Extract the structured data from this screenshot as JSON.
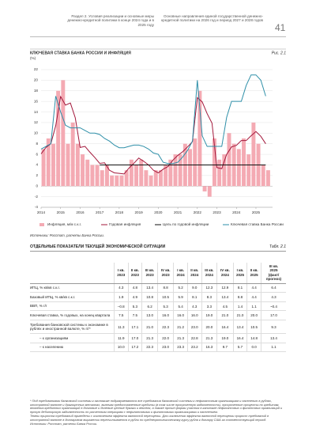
{
  "header": {
    "section": "Раздел 2. Условия реализации и основные меры денежно-кредитной политики в конце 2024 года и в 2025 году",
    "document": "Основные направления единой государственной денежно-кредитной политики на 2026 год и период 2027 и 2028 годов",
    "page": "41"
  },
  "chart_data": {
    "type": "combo",
    "title": "КЛЮЧЕВАЯ СТАВКА БАНКА РОССИИ И ИНФЛЯЦИЯ",
    "label": "Рис. 2.1",
    "ylabel": "(%)",
    "source": "Источники: Росстат, расчеты Банка России.",
    "x": [
      2014,
      2014.25,
      2014.5,
      2014.75,
      2015,
      2015.25,
      2015.5,
      2015.75,
      2016,
      2016.25,
      2016.5,
      2016.75,
      2017,
      2017.25,
      2017.5,
      2017.75,
      2018,
      2018.25,
      2018.5,
      2018.75,
      2019,
      2019.25,
      2019.5,
      2019.75,
      2020,
      2020.25,
      2020.5,
      2020.75,
      2021,
      2021.25,
      2021.5,
      2021.75,
      2022,
      2022.25,
      2022.5,
      2022.75,
      2023,
      2023.25,
      2023.5,
      2023.75,
      2024,
      2024.25,
      2024.5,
      2024.75,
      2025,
      2025.25,
      2025.5
    ],
    "xlim": [
      2014,
      2025.85
    ],
    "xticks": [
      2014,
      2015,
      2016,
      2017,
      2018,
      2019,
      2020,
      2021,
      2022,
      2023,
      2024,
      2025
    ],
    "ylim": [
      -4,
      22
    ],
    "yticks": [
      -4,
      -2,
      0,
      2,
      4,
      6,
      8,
      10,
      12,
      14,
      16,
      18,
      20,
      22
    ],
    "grid": true,
    "series": [
      {
        "name": "Инфляция, м/м с.к.г.",
        "kind": "bar",
        "color": "#f4aab3",
        "values": [
          7,
          9,
          8,
          18,
          20,
          8,
          12,
          8,
          6,
          5,
          4,
          4,
          3,
          4,
          2,
          2,
          2,
          3,
          5,
          4,
          5,
          3,
          2,
          3,
          3,
          4,
          5,
          6,
          6,
          8,
          7,
          9,
          18,
          -1,
          -2,
          9,
          5,
          6,
          10,
          8,
          7,
          9,
          6,
          12,
          8,
          4,
          3
        ]
      },
      {
        "name": "Годовая инфляция",
        "kind": "line",
        "color": "#a3183b",
        "values": [
          6.1,
          7.3,
          8.0,
          11.4,
          16.9,
          15.3,
          15.7,
          12.9,
          7.3,
          7.5,
          6.4,
          5.4,
          4.3,
          4.4,
          3.0,
          2.5,
          2.4,
          2.3,
          3.4,
          4.3,
          5.3,
          4.7,
          4.0,
          3.0,
          2.5,
          3.2,
          3.7,
          4.9,
          5.8,
          6.5,
          7.4,
          8.4,
          16.7,
          15.9,
          13.7,
          11.9,
          3.5,
          3.3,
          6.0,
          7.4,
          7.7,
          8.6,
          8.6,
          9.5,
          10.3,
          9.4,
          8.0
        ]
      },
      {
        "name": "Цель по годовой инфляции",
        "kind": "line",
        "color": "#111111",
        "values": [
          null,
          null,
          null,
          null,
          null,
          null,
          null,
          null,
          null,
          null,
          null,
          null,
          4,
          4,
          4,
          4,
          4,
          4,
          4,
          4,
          4,
          4,
          4,
          4,
          4,
          4,
          4,
          4,
          4,
          4,
          4,
          4,
          4,
          4,
          4,
          4,
          4,
          4,
          4,
          4,
          4,
          4,
          4,
          4,
          4,
          4,
          4
        ]
      },
      {
        "name": "Ключевая ставка Банка России",
        "kind": "line",
        "color": "#2e8fa8",
        "values": [
          7.0,
          7.5,
          8.0,
          17.0,
          14.0,
          11.5,
          11.0,
          11.0,
          11.0,
          10.5,
          10.0,
          10.0,
          9.75,
          9.0,
          8.5,
          7.75,
          7.25,
          7.25,
          7.5,
          7.75,
          7.75,
          7.5,
          7.0,
          6.25,
          6.0,
          4.5,
          4.25,
          4.25,
          4.5,
          5.5,
          6.75,
          8.5,
          20.0,
          9.5,
          7.5,
          7.5,
          7.5,
          7.5,
          13.0,
          16.0,
          16.0,
          16.0,
          19.0,
          21.0,
          21.0,
          20.0,
          17.0
        ]
      }
    ]
  },
  "table": {
    "title": "ОТДЕЛЬНЫЕ ПОКАЗАТЕЛИ ТЕКУЩЕЙ ЭКОНОМИЧЕСКОЙ СИТУАЦИИ",
    "label": "Табл. 2.1",
    "columns": [
      "I кв.\n2023",
      "II кв.\n2023",
      "III кв.\n2023",
      "IV кв.\n2023",
      "I кв.\n2024",
      "II кв.\n2024",
      "III кв.\n2024",
      "IV кв.\n2024",
      "I кв.\n2025",
      "II кв.\n2025",
      "III кв.\n2025\n(факт/\nпрогноз)"
    ],
    "rows": [
      {
        "label": "ИПЦ, % кв/кв с.к.г.",
        "values": [
          "4.3",
          "4.8",
          "13.4",
          "8.8",
          "5.2",
          "9.0",
          "12.3",
          "12.9",
          "8.1",
          "4.4",
          "6.4"
        ]
      },
      {
        "label": "Базовый ИПЦ, % кв/кв с.к.г.",
        "values": [
          "1.9",
          "4.9",
          "10.8",
          "10.5",
          "5.9",
          "8.1",
          "8.3",
          "13.4",
          "8.8",
          "4.4",
          "4.3"
        ]
      },
      {
        "label": "ВВП, % г/г",
        "values": [
          "–0.8",
          "5.3",
          "6.2",
          "5.3",
          "5.4",
          "4.3",
          "3.3",
          "4.5",
          "1.4",
          "1.1",
          "~0.4"
        ]
      },
      {
        "label": "Ключевая ставка, % годовых, на конец квартала",
        "values": [
          "7.5",
          "7.5",
          "13.0",
          "16.0",
          "16.0",
          "16.0",
          "19.0",
          "21.0",
          "21.0",
          "20.0",
          "17.0"
        ]
      },
      {
        "label": "Требования банковской системы к экономике в рублях и иностранной валюте, % г/г*",
        "values": [
          "11.3",
          "17.1",
          "21.0",
          "22.3",
          "21.2",
          "23.0",
          "20.0",
          "16.4",
          "13.4",
          "10.5",
          "9.3"
        ]
      },
      {
        "label": "– к организациям",
        "values": [
          "11.9",
          "17.0",
          "21.3",
          "22.0",
          "21.3",
          "22.8",
          "21.3",
          "19.0",
          "16.4",
          "14.8",
          "13.4"
        ]
      },
      {
        "label": "– к населению",
        "values": [
          "10.0",
          "17.2",
          "22.3",
          "23.0",
          "23.3",
          "23.2",
          "16.3",
          "9.7",
          "5.7",
          "0.0",
          "1.1"
        ]
      }
    ]
  },
  "notes": [
    "* Под требованиями банковской системы к экономике подразумеваются все требования банковской системы к нефинансовым организациям и населению в рублях, иностранной валюте и драгоценных металлах, включая предоставленные кредиты (в том числе просроченную задолженность), просроченные проценты по кредитам, вложения кредитных организаций в долговые и долевые ценные бумаги и векселя, а также прочие формы участия в капитале нефинансовых и финансовых организаций и прочую дебиторскую задолженность по расчетным операциям с нефинансовыми и финансовыми организациями и населением.",
    "Темпы прироста требований приведены с исключением эффекта валютной переоценки. Для исключения эффекта валютной переоценки прирост требований в иностранной валюте в долларовом выражении пересчитывается в рубли по среднехронологическому курсу рубля к доллару США за соответствующий период.",
    "Источники: Росстат, расчеты Банка России."
  ]
}
